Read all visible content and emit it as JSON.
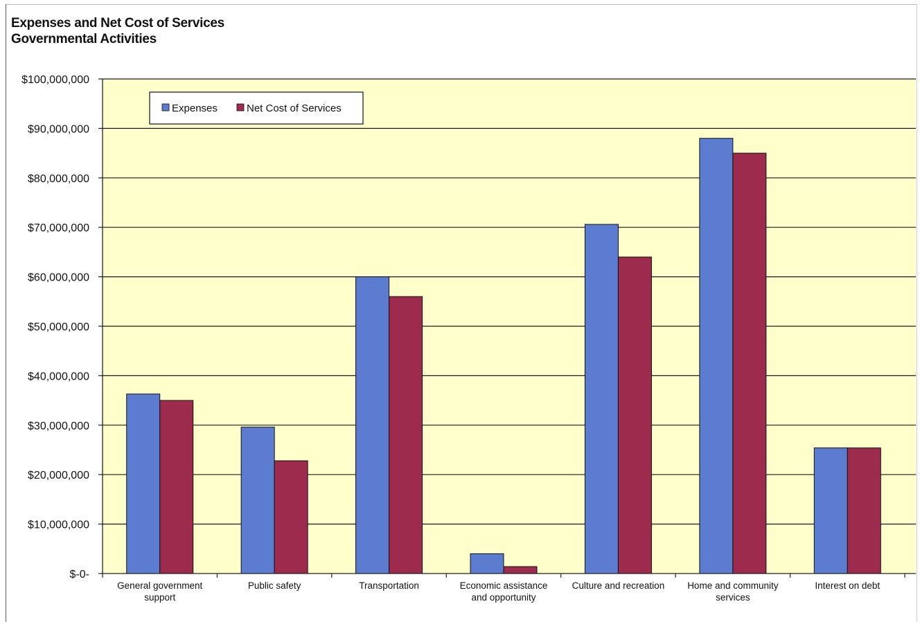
{
  "chart_data": {
    "type": "bar",
    "title": "Expenses and Net Cost of Services",
    "subtitle": "Governmental Activities",
    "categories": [
      "General government support",
      "Public safety",
      "Transportation",
      "Economic assistance and opportunity",
      "Culture and recreation",
      "Home and community services",
      "Interest on debt"
    ],
    "category_lines": [
      [
        "General government",
        "support"
      ],
      [
        "Public safety"
      ],
      [
        "Transportation"
      ],
      [
        "Economic assistance",
        "and opportunity"
      ],
      [
        "Culture and recreation"
      ],
      [
        "Home and community",
        "services"
      ],
      [
        "Interest on debt"
      ]
    ],
    "series": [
      {
        "name": "Expenses",
        "color": "#5b7ccf",
        "values": [
          36300000,
          29600000,
          60000000,
          4000000,
          70600000,
          88000000,
          25400000
        ]
      },
      {
        "name": "Net Cost of Services",
        "color": "#9c2b4e",
        "values": [
          35000000,
          22800000,
          56000000,
          1400000,
          64000000,
          85000000,
          25400000
        ]
      }
    ],
    "ylim": [
      0,
      100000000
    ],
    "yticks": [
      0,
      10000000,
      20000000,
      30000000,
      40000000,
      50000000,
      60000000,
      70000000,
      80000000,
      90000000,
      100000000
    ],
    "ytick_labels": [
      "$-0-",
      "$10,000,000",
      "$20,000,000",
      "$30,000,000",
      "$40,000,000",
      "$50,000,000",
      "$60,000,000",
      "$70,000,000",
      "$80,000,000",
      "$90,000,000",
      "$100,000,000"
    ],
    "grid": true,
    "legend_position": "top-left",
    "plot_background": "#ffffcc"
  }
}
